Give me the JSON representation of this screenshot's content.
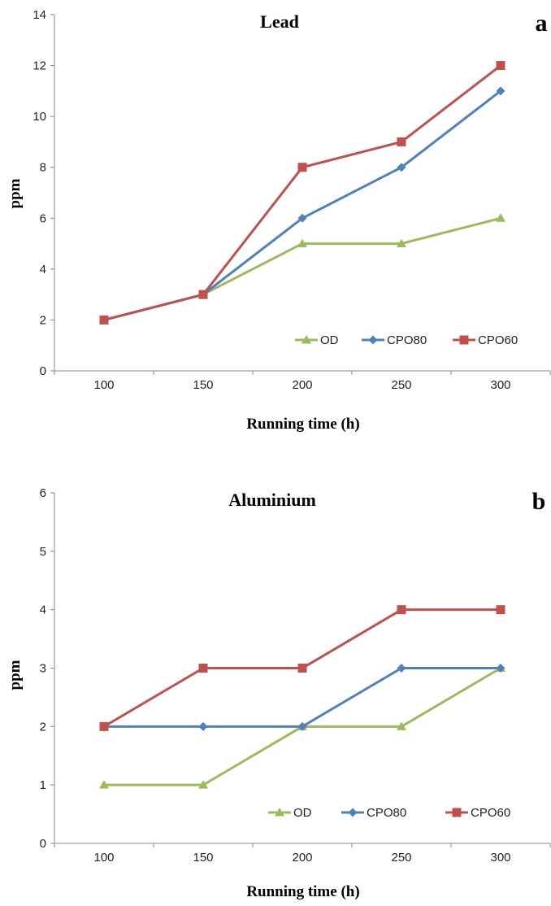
{
  "chart_data": [
    {
      "type": "line",
      "panel_letter": "a",
      "title": "Lead",
      "xlabel": "Running time (h)",
      "ylabel": "ppm",
      "categories": [
        "100",
        "150",
        "200",
        "250",
        "300"
      ],
      "ylim": [
        0,
        14
      ],
      "yticks": [
        "0",
        "2",
        "4",
        "6",
        "8",
        "10",
        "12",
        "14"
      ],
      "series": [
        {
          "name": "OD",
          "values": [
            2,
            3,
            5,
            5,
            6
          ],
          "color": "#9BBB59",
          "marker": "triangle"
        },
        {
          "name": "CPO80",
          "values": [
            2,
            3,
            6,
            8,
            11
          ],
          "color": "#4F81BD",
          "marker": "diamond"
        },
        {
          "name": "CPO60",
          "values": [
            2,
            3,
            8,
            9,
            12
          ],
          "color": "#C0504D",
          "marker": "square"
        }
      ],
      "legend_position": "bottom-right",
      "grid": false
    },
    {
      "type": "line",
      "panel_letter": "b",
      "title": "Aluminium",
      "xlabel": "Running time (h)",
      "ylabel": "ppm",
      "categories": [
        "100",
        "150",
        "200",
        "250",
        "300"
      ],
      "ylim": [
        0,
        6
      ],
      "yticks": [
        "0",
        "1",
        "2",
        "3",
        "4",
        "5",
        "6"
      ],
      "series": [
        {
          "name": "OD",
          "values": [
            1,
            1,
            2,
            2,
            3
          ],
          "color": "#9BBB59",
          "marker": "triangle"
        },
        {
          "name": "CPO80",
          "values": [
            2,
            2,
            2,
            3,
            3
          ],
          "color": "#4F81BD",
          "marker": "diamond"
        },
        {
          "name": "CPO60",
          "values": [
            2,
            3,
            3,
            4,
            4
          ],
          "color": "#C0504D",
          "marker": "square"
        }
      ],
      "legend_position": "bottom-right",
      "grid": false
    }
  ]
}
